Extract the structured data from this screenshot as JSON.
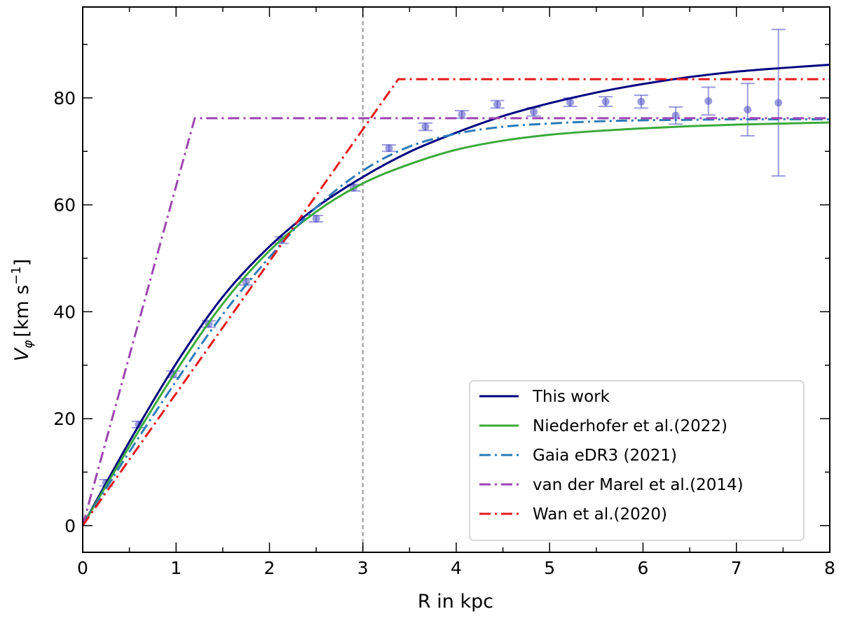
{
  "chart_data": {
    "type": "line",
    "xlabel": "R in kpc",
    "ylabel_main": "V",
    "ylabel_sub": "φ",
    "ylabel_units_pre": "[km s",
    "ylabel_units_sup": "−1",
    "ylabel_units_post": "]",
    "xlim": [
      0,
      8
    ],
    "ylim": [
      -5,
      97
    ],
    "xticks": [
      0,
      1,
      2,
      3,
      4,
      5,
      6,
      7,
      8
    ],
    "xtick_labels": [
      "0",
      "1",
      "2",
      "3",
      "4",
      "5",
      "6",
      "7",
      "8"
    ],
    "yticks": [
      0,
      20,
      40,
      60,
      80
    ],
    "ytick_labels": [
      "0",
      "20",
      "40",
      "60",
      "80"
    ],
    "vline_x": 3,
    "grid": false,
    "legend_position": "bottom-right",
    "series": [
      {
        "name": "This work",
        "color": "#000080",
        "style": "solid",
        "x": [
          0,
          0.5,
          1,
          1.5,
          2,
          2.5,
          3,
          3.5,
          4,
          4.5,
          5,
          5.5,
          6,
          6.5,
          7,
          7.5,
          8
        ],
        "y": [
          0,
          15.7,
          30.3,
          42.8,
          52.2,
          59.5,
          65.2,
          69.9,
          73.5,
          76.6,
          79.0,
          81.0,
          82.6,
          83.9,
          84.9,
          85.6,
          86.2
        ]
      },
      {
        "name": "Niederhofer et al.(2022)",
        "color": "#3aaa3a",
        "style": "solid",
        "x": [
          0,
          0.5,
          1,
          1.5,
          2,
          2.5,
          3,
          3.5,
          4,
          4.5,
          5,
          5.5,
          6,
          6.5,
          7,
          7.5,
          8
        ],
        "y": [
          0,
          14.8,
          28.9,
          41.5,
          51.4,
          58.7,
          64.0,
          67.6,
          70.3,
          72.0,
          73.1,
          73.8,
          74.3,
          74.7,
          75.0,
          75.2,
          75.4
        ]
      },
      {
        "name": "Gaia eDR3 (2021)",
        "color": "#2b7bba",
        "style": "dashdot",
        "x": [
          0,
          0.5,
          1,
          1.5,
          2,
          2.5,
          3,
          3.5,
          4,
          4.5,
          5,
          5.5,
          6,
          6.5,
          7,
          7.5,
          8
        ],
        "y": [
          0,
          13.8,
          27.0,
          39.5,
          50.2,
          59.5,
          66.4,
          70.9,
          73.3,
          74.6,
          75.2,
          75.6,
          75.8,
          75.9,
          76.0,
          76.0,
          76.0
        ]
      },
      {
        "name": "van der Marel et al.(2014)",
        "color": "#9d45b0",
        "style": "dashdot",
        "x": [
          0,
          1.2,
          8
        ],
        "y": [
          0,
          76.2,
          76.2
        ]
      },
      {
        "name": "Wan et al.(2020)",
        "color": "#e41a1c",
        "style": "dashdot",
        "x": [
          0,
          3.38,
          8
        ],
        "y": [
          0,
          83.5,
          83.5
        ]
      }
    ],
    "data_points": {
      "name": "",
      "color": "#4a4ac4",
      "x": [
        0.25,
        0.6,
        0.97,
        1.35,
        1.75,
        2.13,
        2.5,
        2.9,
        3.28,
        3.67,
        4.06,
        4.44,
        4.83,
        5.22,
        5.6,
        5.98,
        6.35,
        6.7,
        7.12,
        7.45
      ],
      "y": [
        8.0,
        18.9,
        28.3,
        37.7,
        45.6,
        53.4,
        57.4,
        63.2,
        70.6,
        74.6,
        76.9,
        78.8,
        77.4,
        79.2,
        79.3,
        79.3,
        76.7,
        79.4,
        77.8,
        79.1
      ],
      "err": [
        0.6,
        0.6,
        0.6,
        0.6,
        0.6,
        0.6,
        0.6,
        0.6,
        0.6,
        0.7,
        0.7,
        0.7,
        0.8,
        0.8,
        0.9,
        1.2,
        1.6,
        2.6,
        4.9,
        13.7
      ]
    }
  }
}
